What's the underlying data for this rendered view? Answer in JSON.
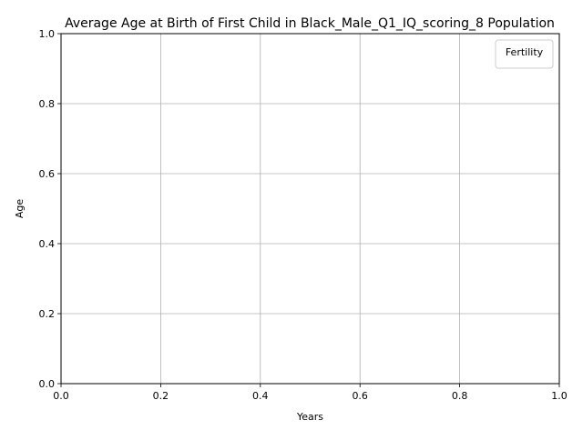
{
  "chart_data": {
    "type": "line",
    "title": "Average Age at Birth of First Child in Black_Male_Q1_IQ_scoring_8 Population",
    "xlabel": "Years",
    "ylabel": "Age",
    "xlim": [
      0,
      1
    ],
    "ylim": [
      0,
      1
    ],
    "xticks": [
      "0.0",
      "0.2",
      "0.4",
      "0.6",
      "0.8",
      "1.0"
    ],
    "yticks": [
      "0.0",
      "0.2",
      "0.4",
      "0.6",
      "0.8",
      "1.0"
    ],
    "grid": true,
    "legend": {
      "title": "Fertility",
      "placement": "top-right",
      "entries": []
    },
    "series": [],
    "colors": {
      "grid": "#b0b0b0",
      "axis": "#000000",
      "background": "#ffffff"
    }
  }
}
